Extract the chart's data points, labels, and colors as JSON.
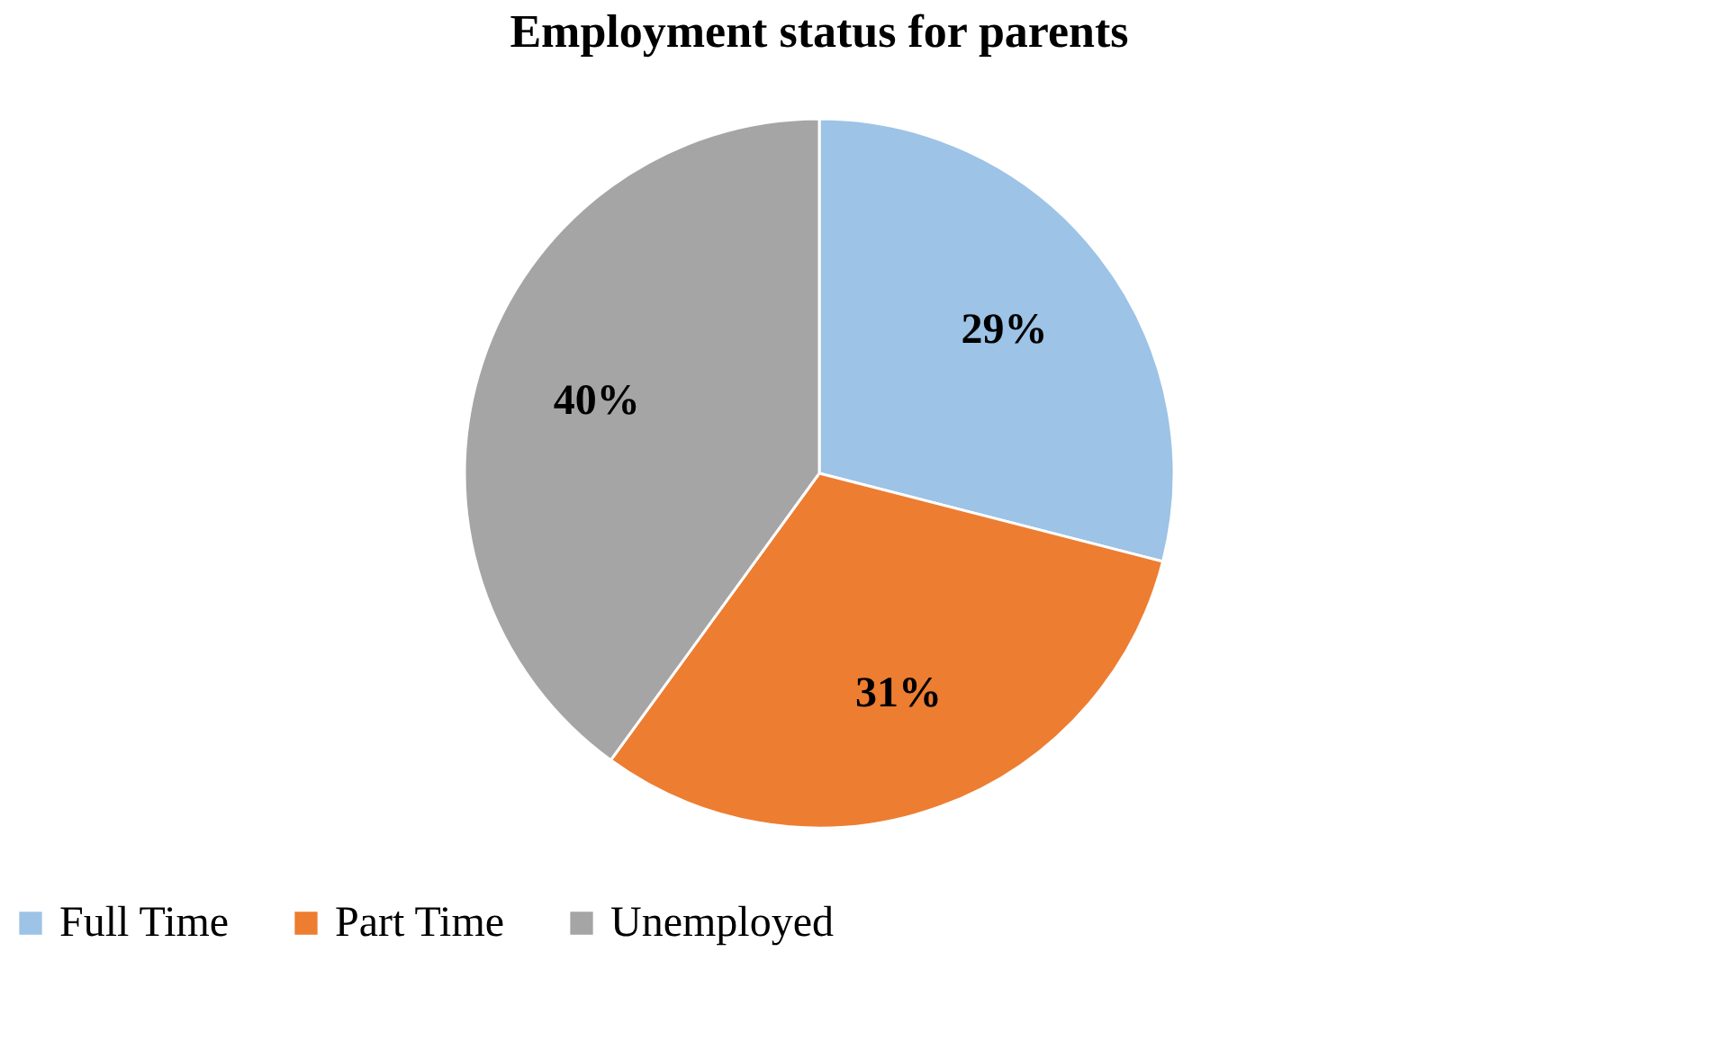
{
  "chart_data": {
    "type": "pie",
    "title": "Employment status for parents",
    "categories": [
      "Full Time",
      "Part Time",
      "Unemployed"
    ],
    "values": [
      29,
      31,
      40
    ],
    "colors": [
      "#9dc3e6",
      "#ed7d31",
      "#a5a5a5"
    ],
    "value_labels": [
      "29%",
      "31%",
      "40%"
    ],
    "legend": "bottom"
  }
}
